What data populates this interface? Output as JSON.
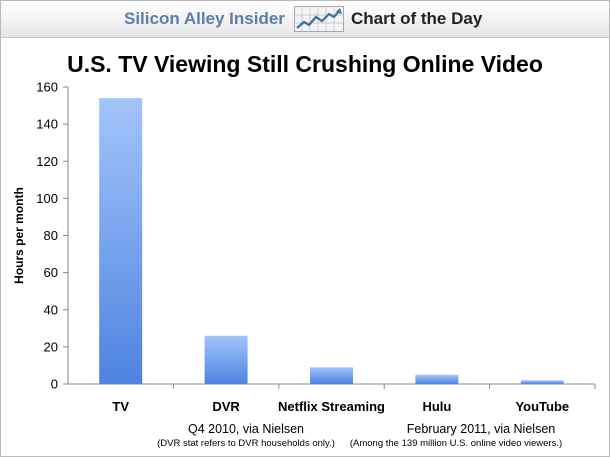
{
  "header": {
    "brand": "Silicon Alley Insider",
    "subtitle": "Chart of the Day",
    "logo_icon": "rising-chart-arrow-icon"
  },
  "chart_data": {
    "type": "bar",
    "title": "U.S. TV Viewing Still Crushing Online Video",
    "xlabel": "",
    "ylabel": "Hours per month",
    "categories": [
      "TV",
      "DVR",
      "Netflix Streaming",
      "Hulu",
      "YouTube"
    ],
    "values": [
      154,
      26,
      9,
      5,
      2
    ],
    "ylim": [
      0,
      160
    ],
    "yticks": [
      0,
      20,
      40,
      60,
      80,
      100,
      120,
      140,
      160
    ],
    "grid": false,
    "bar_color_top": "#a3c4fb",
    "bar_color_bottom": "#4e83e0"
  },
  "notes": {
    "left_main": "Q4 2010, via Nielsen",
    "left_sub": "(DVR stat refers to DVR households only.)",
    "right_main": "February 2011, via Nielsen",
    "right_sub": "(Among the 139 million U.S. online video viewers.)"
  }
}
